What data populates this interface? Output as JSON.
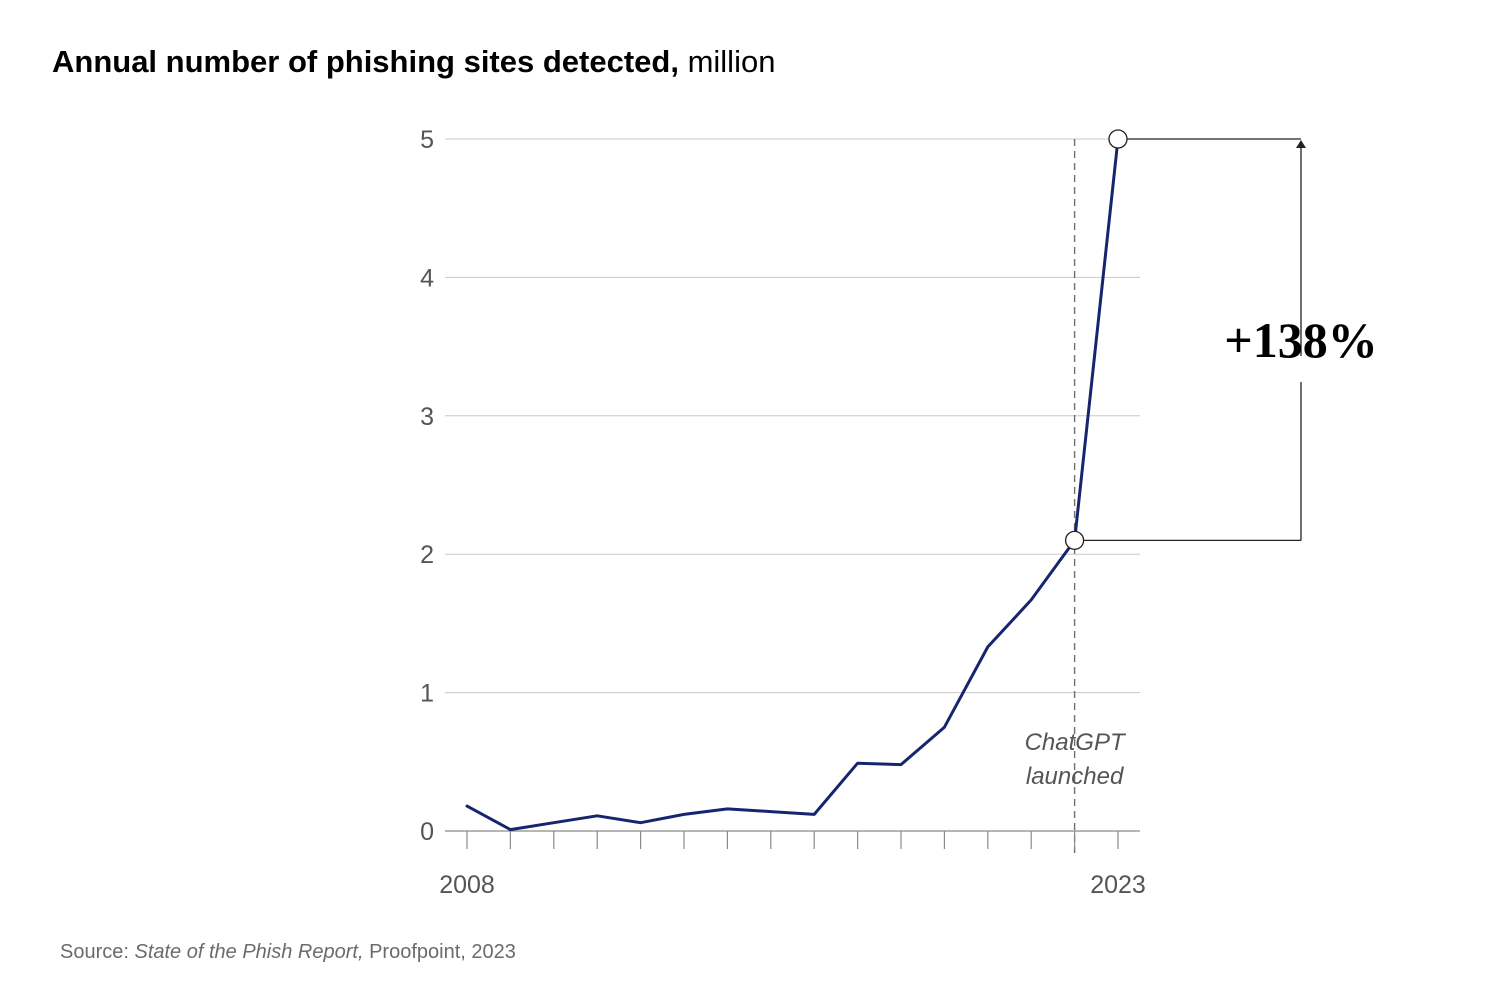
{
  "title_bold": "Annual number of phishing sites detected,",
  "title_unit": "million",
  "source": {
    "prefix": "Source: ",
    "report": "State of the Phish Report,",
    "suffix": " Proofpoint, 2023"
  },
  "colors": {
    "line": "#16256e",
    "grid": "#c8c8c8",
    "axis": "#8a8a8a",
    "annotation": "#222222"
  },
  "chart_data": {
    "type": "line",
    "title": "Annual number of phishing sites detected, million",
    "x": [
      2008,
      2009,
      2010,
      2011,
      2012,
      2013,
      2014,
      2015,
      2016,
      2017,
      2018,
      2019,
      2020,
      2021,
      2022,
      2023
    ],
    "series": [
      {
        "values": [
          0.18,
          0.01,
          0.06,
          0.11,
          0.06,
          0.12,
          0.16,
          0.14,
          0.12,
          0.49,
          0.48,
          0.75,
          1.33,
          1.67,
          2.1,
          5.0
        ]
      }
    ],
    "x_tick_labels": [
      {
        "x": 2008,
        "label": "2008"
      },
      {
        "x": 2023,
        "label": "2023"
      }
    ],
    "y_ticks": [
      0,
      1,
      2,
      3,
      4,
      5
    ],
    "ylim": [
      0,
      5
    ],
    "xlim": [
      2008,
      2023
    ],
    "grid": "horizontal",
    "annotations": {
      "event_year": 2022,
      "event_label_line1": "ChatGPT",
      "event_label_line2": "launched",
      "change_label": "+138%",
      "change_from_year": 2022,
      "change_to_year": 2023
    }
  }
}
